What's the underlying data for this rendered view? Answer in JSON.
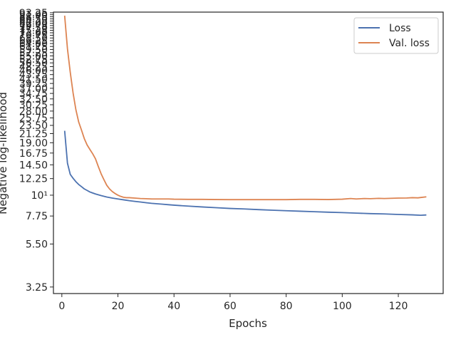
{
  "chart_data": {
    "type": "line",
    "xlabel": "Epochs",
    "ylabel": "Negative log-likelihood",
    "xlim": [
      -3,
      136
    ],
    "ylim": [
      3.0,
      94.0
    ],
    "yscale": "log",
    "grid": false,
    "legend_position": "top-right",
    "x_ticks": [
      0,
      20,
      40,
      60,
      80,
      100,
      120
    ],
    "x_tick_labels": [
      "0",
      "20",
      "40",
      "60",
      "80",
      "100",
      "120"
    ],
    "y_ticks": [
      3.25,
      5.5,
      7.75,
      10,
      12.25,
      14.5,
      16.75,
      19.0,
      21.25,
      23.5,
      25.75,
      28.0,
      30.25,
      32.5,
      34.75,
      37.0,
      39.25,
      41.5,
      43.75,
      46.0,
      48.25,
      50.5,
      52.75,
      55.0,
      57.25,
      59.5,
      61.75,
      64.0,
      66.25,
      68.5,
      70.75,
      73.0,
      75.25,
      77.5,
      79.75,
      82.0,
      84.25,
      86.5,
      88.75,
      91.0,
      93.25
    ],
    "y_tick_labels": [
      "3.25",
      "5.50",
      "7.75",
      "10¹",
      "12.25",
      "14.50",
      "16.75",
      "19.00",
      "21.25",
      "23.50",
      "25.75",
      "28.00",
      "30.25",
      "32.50",
      "34.75",
      "37.00",
      "39.25",
      "41.50",
      "43.75",
      "46.00",
      "48.25",
      "50.50",
      "52.75",
      "55.00",
      "57.25",
      "59.50",
      "61.75",
      "64.00",
      "66.25",
      "68.50",
      "70.75",
      "73.00",
      "75.25",
      "77.50",
      "79.75",
      "82.00",
      "84.25",
      "86.50",
      "88.75",
      "91.00",
      "93.25"
    ],
    "series": [
      {
        "name": "Loss",
        "color": "#4c72b0",
        "x": [
          1,
          2,
          3,
          4,
          5,
          6,
          7,
          8,
          9,
          10,
          12,
          14,
          16,
          18,
          20,
          22,
          24,
          26,
          28,
          30,
          32,
          34,
          36,
          38,
          40,
          45,
          50,
          55,
          60,
          65,
          70,
          75,
          80,
          85,
          90,
          95,
          100,
          105,
          110,
          115,
          120,
          125,
          128,
          130
        ],
        "y": [
          22.0,
          14.8,
          12.9,
          12.3,
          11.8,
          11.4,
          11.1,
          10.8,
          10.6,
          10.4,
          10.15,
          9.95,
          9.78,
          9.65,
          9.55,
          9.45,
          9.35,
          9.27,
          9.2,
          9.12,
          9.05,
          9.0,
          8.95,
          8.9,
          8.85,
          8.75,
          8.66,
          8.58,
          8.5,
          8.45,
          8.38,
          8.32,
          8.27,
          8.22,
          8.17,
          8.12,
          8.08,
          8.03,
          7.98,
          7.95,
          7.9,
          7.86,
          7.82,
          7.85
        ]
      },
      {
        "name": "Val. loss",
        "color": "#dd8452",
        "x": [
          1,
          2,
          3,
          4,
          5,
          6,
          7,
          8,
          9,
          10,
          11,
          12,
          13,
          14,
          15,
          16,
          17,
          18,
          19,
          20,
          21,
          22,
          23,
          24,
          26,
          28,
          30,
          32,
          34,
          36,
          38,
          40,
          45,
          50,
          55,
          60,
          65,
          70,
          75,
          80,
          85,
          90,
          95,
          100,
          103,
          105,
          108,
          110,
          113,
          115,
          118,
          120,
          123,
          125,
          127,
          128,
          130
        ],
        "y": [
          90.0,
          60.0,
          45.0,
          35.0,
          28.5,
          24.5,
          22.2,
          20.0,
          18.5,
          17.5,
          16.6,
          15.6,
          14.2,
          13.0,
          12.1,
          11.3,
          10.8,
          10.45,
          10.2,
          10.0,
          9.85,
          9.75,
          9.7,
          9.7,
          9.65,
          9.6,
          9.58,
          9.55,
          9.55,
          9.55,
          9.55,
          9.52,
          9.5,
          9.5,
          9.48,
          9.47,
          9.47,
          9.47,
          9.47,
          9.47,
          9.5,
          9.5,
          9.48,
          9.52,
          9.6,
          9.55,
          9.6,
          9.58,
          9.62,
          9.6,
          9.63,
          9.65,
          9.66,
          9.7,
          9.68,
          9.72,
          9.8
        ]
      }
    ]
  }
}
